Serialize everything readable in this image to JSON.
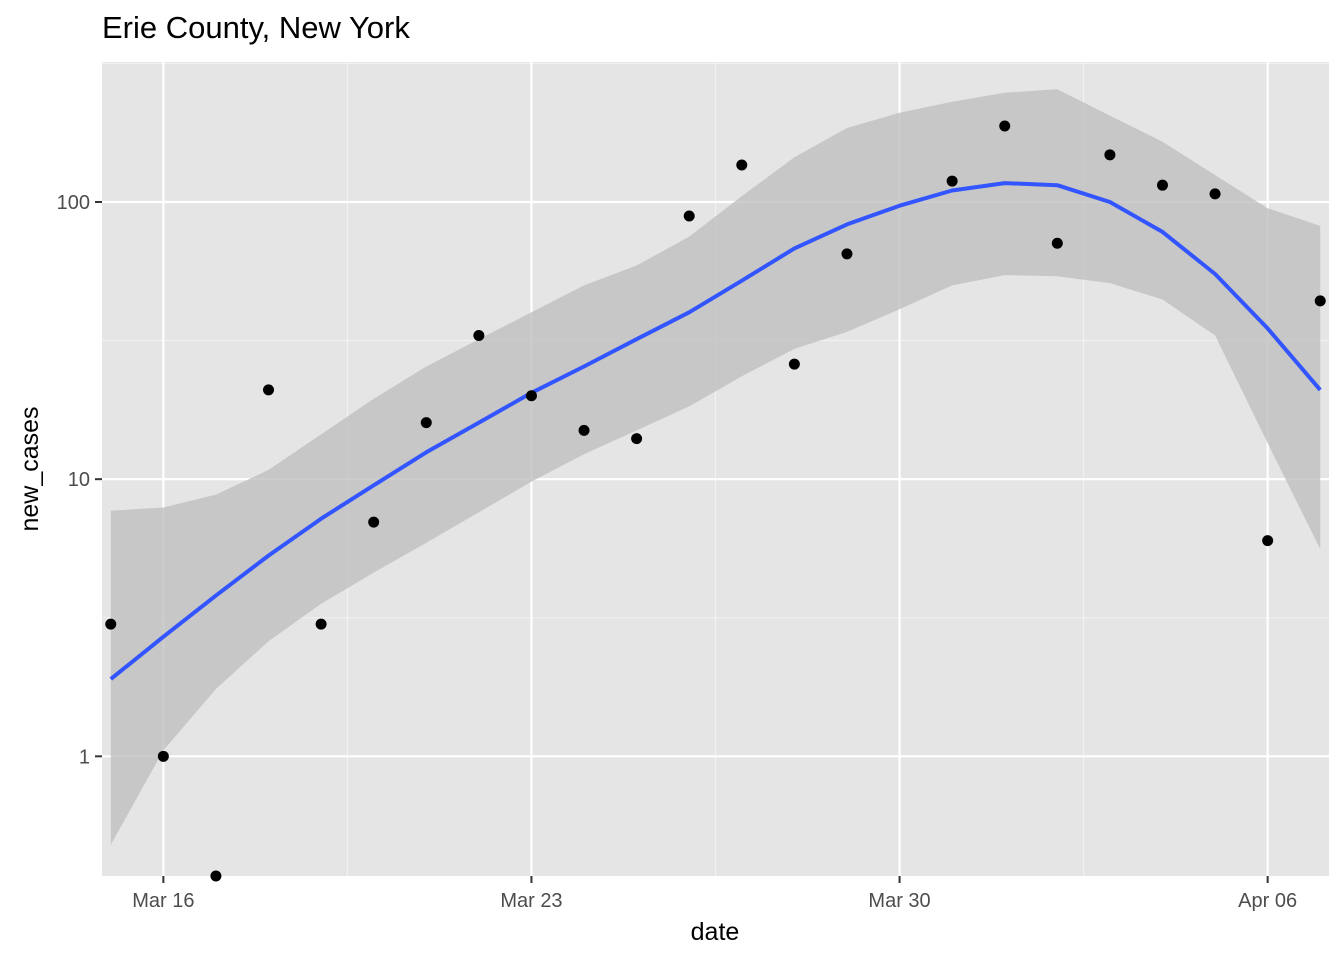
{
  "chart_data": {
    "type": "scatter",
    "title": "Erie County, New York",
    "xlabel": "date",
    "ylabel": "new_cases",
    "y_scale": "log10",
    "xlim": [
      "2020-03-14T20:00",
      "2020-04-07T04:00"
    ],
    "ylim": [
      0.37,
      320
    ],
    "x_ticks": [
      {
        "value": "2020-03-16",
        "label": "Mar 16"
      },
      {
        "value": "2020-03-23",
        "label": "Mar 23"
      },
      {
        "value": "2020-03-30",
        "label": "Mar 30"
      },
      {
        "value": "2020-04-06",
        "label": "Apr 06"
      }
    ],
    "y_ticks": [
      {
        "value": 1,
        "label": "1"
      },
      {
        "value": 10,
        "label": "10"
      },
      {
        "value": 100,
        "label": "100"
      }
    ],
    "x_minor_breaks": [
      "2020-03-19T12:00",
      "2020-03-26T12:00",
      "2020-04-02T12:00"
    ],
    "y_minor_breaks": [
      0.3162,
      3.162,
      31.62,
      316.2
    ],
    "grid": true,
    "points": [
      {
        "x": "2020-03-15",
        "y": 3
      },
      {
        "x": "2020-03-16",
        "y": 1
      },
      {
        "x": "2020-03-17",
        "y": 0.37
      },
      {
        "x": "2020-03-18",
        "y": 21
      },
      {
        "x": "2020-03-19",
        "y": 3
      },
      {
        "x": "2020-03-20",
        "y": 7
      },
      {
        "x": "2020-03-21",
        "y": 16
      },
      {
        "x": "2020-03-22",
        "y": 33
      },
      {
        "x": "2020-03-23",
        "y": 20
      },
      {
        "x": "2020-03-24",
        "y": 15
      },
      {
        "x": "2020-03-25",
        "y": 14
      },
      {
        "x": "2020-03-26",
        "y": 89
      },
      {
        "x": "2020-03-27",
        "y": 136
      },
      {
        "x": "2020-03-28",
        "y": 26
      },
      {
        "x": "2020-03-29",
        "y": 65
      },
      {
        "x": "2020-03-31",
        "y": 119
      },
      {
        "x": "2020-04-01",
        "y": 188
      },
      {
        "x": "2020-04-02",
        "y": 71
      },
      {
        "x": "2020-04-03",
        "y": 148
      },
      {
        "x": "2020-04-04",
        "y": 115
      },
      {
        "x": "2020-04-05",
        "y": 107
      },
      {
        "x": "2020-04-06",
        "y": 6
      },
      {
        "x": "2020-04-07",
        "y": 44
      }
    ],
    "smooth": {
      "x": [
        "2020-03-15",
        "2020-03-16",
        "2020-03-17",
        "2020-03-18",
        "2020-03-19",
        "2020-03-20",
        "2020-03-21",
        "2020-03-22",
        "2020-03-23",
        "2020-03-24",
        "2020-03-25",
        "2020-03-26",
        "2020-03-27",
        "2020-03-28",
        "2020-03-29",
        "2020-03-30",
        "2020-03-31",
        "2020-04-01",
        "2020-04-02",
        "2020-04-03",
        "2020-04-04",
        "2020-04-05",
        "2020-04-06",
        "2020-04-07"
      ],
      "fit": [
        1.9,
        2.7,
        3.8,
        5.3,
        7.2,
        9.5,
        12.5,
        16.0,
        20.5,
        25.5,
        32.0,
        40.0,
        52.0,
        68.0,
        83.0,
        97.0,
        110.0,
        117.0,
        115.0,
        100.0,
        78.0,
        55.0,
        35.0,
        21.0
      ],
      "lower": [
        0.48,
        1.05,
        1.75,
        2.6,
        3.55,
        4.6,
        5.9,
        7.6,
        9.8,
        12.3,
        15.0,
        18.3,
        23.5,
        29.5,
        34.0,
        41.0,
        50.0,
        54.5,
        54.0,
        51.0,
        44.5,
        33.0,
        13.5,
        5.6
      ],
      "upper": [
        7.7,
        7.9,
        8.8,
        10.8,
        14.5,
        19.5,
        25.5,
        32.0,
        40.0,
        50.0,
        59.0,
        75.0,
        105.0,
        145.0,
        185.0,
        210.0,
        230.0,
        248.0,
        255.0,
        205.0,
        165.0,
        125.0,
        95.0,
        82.0
      ]
    },
    "colors": {
      "panel": "#e5e5e5",
      "grid_major": "#ffffff",
      "grid_minor": "#f2f2f2",
      "ribbon": "#bfbfbf",
      "line": "#3355ff",
      "points": "#000000",
      "tick_text": "#4d4d4d",
      "tick_mark": "#333333"
    }
  }
}
